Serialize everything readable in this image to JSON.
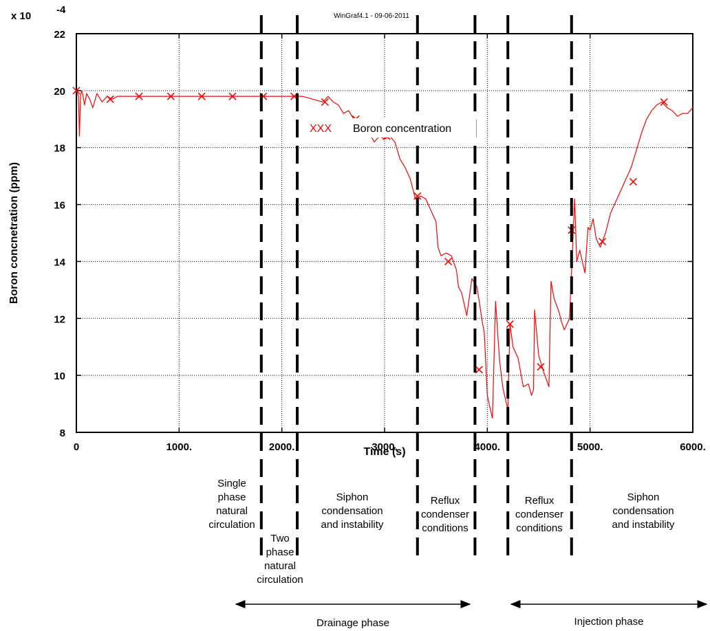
{
  "chart_data": {
    "type": "line",
    "credit": "WinGraf4.1 - 09-06-2011",
    "multiplier": "x 10",
    "multiplier_exp": "-4",
    "xlabel": "Time (s)",
    "ylabel": "Boron concnetration (ppm)",
    "xlim": [
      0,
      6000
    ],
    "ylim": [
      8,
      22
    ],
    "x_ticks": [
      {
        "value": 0,
        "label": "0"
      },
      {
        "value": 1000,
        "label": "1000."
      },
      {
        "value": 2000,
        "label": "2000."
      },
      {
        "value": 3000,
        "label": "3000."
      },
      {
        "value": 4000,
        "label": "4000."
      },
      {
        "value": 5000,
        "label": "5000."
      },
      {
        "value": 6000,
        "label": "6000."
      }
    ],
    "y_ticks": [
      {
        "value": 8,
        "label": "8"
      },
      {
        "value": 10,
        "label": "10"
      },
      {
        "value": 12,
        "label": "12"
      },
      {
        "value": 14,
        "label": "14"
      },
      {
        "value": 16,
        "label": "16"
      },
      {
        "value": 18,
        "label": "18"
      },
      {
        "value": 20,
        "label": "20"
      },
      {
        "value": 22,
        "label": "22"
      }
    ],
    "grid": true,
    "legend": {
      "marker_text": "XXX",
      "label": "Boron concentration",
      "position": "top-center"
    },
    "series": [
      {
        "name": "Boron concentration",
        "color": "#ff0000",
        "x": [
          0,
          20,
          30,
          40,
          50,
          60,
          80,
          100,
          130,
          160,
          200,
          250,
          300,
          350,
          400,
          500,
          600,
          700,
          800,
          1000,
          1200,
          1500,
          1800,
          2000,
          2100,
          2200,
          2300,
          2400,
          2450,
          2500,
          2550,
          2600,
          2650,
          2700,
          2750,
          2800,
          2850,
          2900,
          2950,
          3000,
          3050,
          3100,
          3150,
          3200,
          3250,
          3300,
          3350,
          3400,
          3450,
          3500,
          3520,
          3550,
          3600,
          3650,
          3700,
          3720,
          3750,
          3800,
          3850,
          3900,
          3950,
          3970,
          4000,
          4030,
          4050,
          4080,
          4100,
          4120,
          4150,
          4180,
          4200,
          4220,
          4250,
          4300,
          4350,
          4400,
          4430,
          4450,
          4460,
          4500,
          4550,
          4600,
          4620,
          4650,
          4700,
          4720,
          4750,
          4800,
          4830,
          4850,
          4870,
          4900,
          4950,
          4980,
          5000,
          5030,
          5060,
          5100,
          5150,
          5200,
          5250,
          5300,
          5350,
          5400,
          5450,
          5500,
          5550,
          5600,
          5650,
          5700,
          5750,
          5800,
          5850,
          5900,
          5950,
          6000
        ],
        "y": [
          20.0,
          19.8,
          18.4,
          19.8,
          20.0,
          19.9,
          19.5,
          19.9,
          19.7,
          19.4,
          19.9,
          19.6,
          19.8,
          19.7,
          19.8,
          19.8,
          19.8,
          19.8,
          19.8,
          19.8,
          19.8,
          19.8,
          19.8,
          19.8,
          19.8,
          19.8,
          19.7,
          19.6,
          19.8,
          19.6,
          19.5,
          19.2,
          19.3,
          19.0,
          18.8,
          18.9,
          18.5,
          18.2,
          18.4,
          18.3,
          18.4,
          18.2,
          17.6,
          17.3,
          16.9,
          16.2,
          16.3,
          16.2,
          15.8,
          15.4,
          14.5,
          14.2,
          14.3,
          14.2,
          13.7,
          13.1,
          12.9,
          12.1,
          13.4,
          13.1,
          11.9,
          11.5,
          9.3,
          8.8,
          8.5,
          12.6,
          11.5,
          10.5,
          9.6,
          9.1,
          8.8,
          11.8,
          11.0,
          10.6,
          9.6,
          9.7,
          9.3,
          9.5,
          12.3,
          10.7,
          10.1,
          9.6,
          13.3,
          12.7,
          12.2,
          11.9,
          11.6,
          12.0,
          14.5,
          16.2,
          14.0,
          14.4,
          13.6,
          15.2,
          15.1,
          15.5,
          14.8,
          14.5,
          15.0,
          15.7,
          16.1,
          16.5,
          16.9,
          17.3,
          17.9,
          18.5,
          19.0,
          19.3,
          19.5,
          19.6,
          19.4,
          19.3,
          19.1,
          19.2,
          19.2,
          19.4
        ]
      }
    ],
    "markers": {
      "x": [
        0,
        330,
        610,
        920,
        1220,
        1520,
        1820,
        2120,
        2420,
        2720,
        3020,
        3320,
        3620,
        3920,
        4220,
        4520,
        4820,
        5120,
        5420,
        5720
      ],
      "y": [
        20.0,
        19.7,
        19.8,
        19.8,
        19.8,
        19.8,
        19.8,
        19.8,
        19.6,
        19.0,
        18.4,
        16.3,
        14.0,
        10.2,
        11.8,
        10.3,
        15.1,
        14.7,
        16.8,
        19.6
      ]
    },
    "phase_dividers": [
      1800,
      2150,
      3320,
      3880,
      4200,
      4820
    ],
    "phase_labels": [
      {
        "lines": [
          "Single",
          "phase",
          "natural",
          "circulation"
        ]
      },
      {
        "lines": [
          "Two",
          "phase",
          "natural",
          "circulation"
        ]
      },
      {
        "lines": [
          "Siphon",
          "condensation",
          "and instability"
        ]
      },
      {
        "lines": [
          "Reflux",
          "condenser",
          "conditions"
        ]
      },
      {
        "lines": [
          "Reflux",
          "condenser",
          "conditions"
        ]
      },
      {
        "lines": [
          "Siphon",
          "condensation",
          "and instability"
        ]
      }
    ],
    "phase_spans": [
      {
        "label": "Drainage phase",
        "from": 1550,
        "to": 3830
      },
      {
        "label": "Injection phase",
        "from": 4230,
        "to": 6000
      }
    ]
  }
}
